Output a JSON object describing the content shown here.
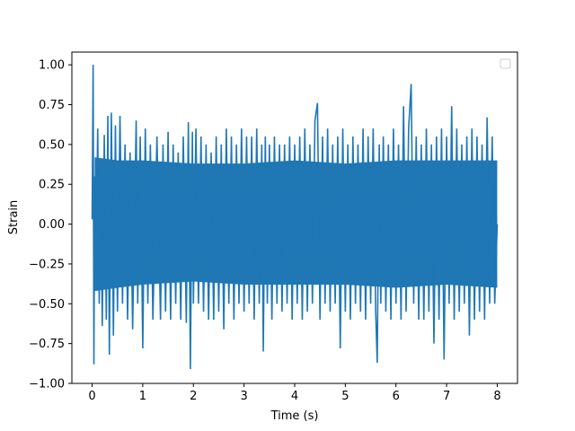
{
  "chart_data": {
    "type": "line",
    "title": "",
    "xlabel": "Time (s)",
    "ylabel": "Strain",
    "xlim": [
      -0.4,
      8.4
    ],
    "ylim": [
      -1.0,
      1.08
    ],
    "xticks": [
      0,
      1,
      2,
      3,
      4,
      5,
      6,
      7,
      8
    ],
    "xtick_labels": [
      "0",
      "1",
      "2",
      "3",
      "4",
      "5",
      "6",
      "7",
      "8"
    ],
    "yticks": [
      -1.0,
      -0.75,
      -0.5,
      -0.25,
      0.0,
      0.25,
      0.5,
      0.75,
      1.0
    ],
    "ytick_labels": [
      "−1.00",
      "−0.75",
      "−0.50",
      "−0.25",
      "0.00",
      "0.25",
      "0.50",
      "0.75",
      "1.00"
    ],
    "grid": false,
    "legend": {
      "placement": "top-right",
      "entries": []
    },
    "series": [
      {
        "color": "#1f77b4",
        "points": [
          [
            0.0,
            0.03
          ],
          [
            0.02,
            1.0
          ],
          [
            0.035,
            -0.88
          ],
          [
            0.05,
            0.3
          ],
          [
            0.08,
            -0.2
          ],
          [
            0.11,
            0.6
          ],
          [
            0.14,
            -0.5
          ],
          [
            0.17,
            0.4
          ],
          [
            0.2,
            -0.64
          ],
          [
            0.24,
            0.56
          ],
          [
            0.28,
            -0.6
          ],
          [
            0.31,
            0.68
          ],
          [
            0.34,
            -0.82
          ],
          [
            0.38,
            0.7
          ],
          [
            0.42,
            -0.7
          ],
          [
            0.46,
            0.62
          ],
          [
            0.5,
            -0.55
          ],
          [
            0.55,
            0.68
          ],
          [
            0.6,
            -0.5
          ],
          [
            0.65,
            0.5
          ],
          [
            0.7,
            -0.6
          ],
          [
            0.75,
            0.45
          ],
          [
            0.8,
            -0.66
          ],
          [
            0.87,
            0.65
          ],
          [
            0.9,
            -0.5
          ],
          [
            0.95,
            0.55
          ],
          [
            1.0,
            -0.78
          ],
          [
            1.05,
            0.6
          ],
          [
            1.1,
            -0.5
          ],
          [
            1.15,
            0.5
          ],
          [
            1.2,
            -0.6
          ],
          [
            1.28,
            0.55
          ],
          [
            1.35,
            -0.6
          ],
          [
            1.4,
            0.5
          ],
          [
            1.45,
            -0.55
          ],
          [
            1.5,
            0.58
          ],
          [
            1.55,
            -0.6
          ],
          [
            1.6,
            0.5
          ],
          [
            1.65,
            -0.5
          ],
          [
            1.7,
            0.45
          ],
          [
            1.75,
            -0.6
          ],
          [
            1.8,
            0.55
          ],
          [
            1.86,
            -0.62
          ],
          [
            1.9,
            0.64
          ],
          [
            1.94,
            -0.91
          ],
          [
            1.98,
            0.58
          ],
          [
            2.0,
            -0.5
          ],
          [
            2.05,
            0.6
          ],
          [
            2.1,
            -0.5
          ],
          [
            2.15,
            0.55
          ],
          [
            2.2,
            -0.55
          ],
          [
            2.25,
            0.5
          ],
          [
            2.3,
            -0.6
          ],
          [
            2.35,
            0.45
          ],
          [
            2.4,
            -0.6
          ],
          [
            2.45,
            0.55
          ],
          [
            2.5,
            -0.55
          ],
          [
            2.55,
            0.5
          ],
          [
            2.6,
            -0.66
          ],
          [
            2.65,
            0.6
          ],
          [
            2.7,
            -0.5
          ],
          [
            2.75,
            0.55
          ],
          [
            2.8,
            -0.6
          ],
          [
            2.85,
            0.5
          ],
          [
            2.9,
            -0.5
          ],
          [
            2.95,
            0.6
          ],
          [
            3.0,
            -0.55
          ],
          [
            3.05,
            0.55
          ],
          [
            3.1,
            -0.5
          ],
          [
            3.15,
            0.55
          ],
          [
            3.2,
            -0.6
          ],
          [
            3.25,
            0.6
          ],
          [
            3.3,
            -0.5
          ],
          [
            3.35,
            0.5
          ],
          [
            3.38,
            -0.8
          ],
          [
            3.42,
            0.55
          ],
          [
            3.46,
            -0.5
          ],
          [
            3.5,
            0.5
          ],
          [
            3.55,
            -0.6
          ],
          [
            3.6,
            0.55
          ],
          [
            3.65,
            -0.5
          ],
          [
            3.7,
            0.5
          ],
          [
            3.75,
            -0.55
          ],
          [
            3.8,
            0.5
          ],
          [
            3.85,
            -0.5
          ],
          [
            3.9,
            0.55
          ],
          [
            3.95,
            -0.6
          ],
          [
            4.0,
            0.5
          ],
          [
            4.05,
            -0.5
          ],
          [
            4.1,
            0.55
          ],
          [
            4.15,
            -0.6
          ],
          [
            4.2,
            0.6
          ],
          [
            4.25,
            -0.55
          ],
          [
            4.3,
            0.5
          ],
          [
            4.35,
            -0.5
          ],
          [
            4.4,
            0.65
          ],
          [
            4.45,
            0.76
          ],
          [
            4.5,
            -0.6
          ],
          [
            4.55,
            0.55
          ],
          [
            4.6,
            -0.5
          ],
          [
            4.65,
            0.6
          ],
          [
            4.7,
            -0.55
          ],
          [
            4.75,
            0.5
          ],
          [
            4.8,
            -0.5
          ],
          [
            4.85,
            0.55
          ],
          [
            4.9,
            -0.78
          ],
          [
            4.95,
            0.6
          ],
          [
            5.0,
            -0.55
          ],
          [
            5.05,
            0.5
          ],
          [
            5.1,
            -0.6
          ],
          [
            5.15,
            0.55
          ],
          [
            5.2,
            -0.5
          ],
          [
            5.25,
            0.5
          ],
          [
            5.3,
            -0.55
          ],
          [
            5.35,
            0.6
          ],
          [
            5.4,
            -0.6
          ],
          [
            5.45,
            0.55
          ],
          [
            5.5,
            -0.5
          ],
          [
            5.55,
            0.6
          ],
          [
            5.6,
            -0.55
          ],
          [
            5.63,
            -0.87
          ],
          [
            5.67,
            0.5
          ],
          [
            5.7,
            -0.5
          ],
          [
            5.75,
            0.55
          ],
          [
            5.8,
            -0.55
          ],
          [
            5.85,
            0.5
          ],
          [
            5.9,
            -0.6
          ],
          [
            5.95,
            0.6
          ],
          [
            6.0,
            -0.5
          ],
          [
            6.05,
            0.5
          ],
          [
            6.1,
            -0.6
          ],
          [
            6.15,
            0.74
          ],
          [
            6.2,
            -0.55
          ],
          [
            6.25,
            0.6
          ],
          [
            6.3,
            0.88
          ],
          [
            6.35,
            -0.5
          ],
          [
            6.4,
            0.55
          ],
          [
            6.45,
            -0.6
          ],
          [
            6.5,
            0.5
          ],
          [
            6.55,
            -0.6
          ],
          [
            6.6,
            0.6
          ],
          [
            6.65,
            -0.55
          ],
          [
            6.7,
            0.5
          ],
          [
            6.75,
            -0.75
          ],
          [
            6.8,
            0.55
          ],
          [
            6.85,
            -0.6
          ],
          [
            6.9,
            0.6
          ],
          [
            6.95,
            -0.85
          ],
          [
            7.0,
            0.55
          ],
          [
            7.05,
            -0.5
          ],
          [
            7.1,
            0.74
          ],
          [
            7.15,
            -0.6
          ],
          [
            7.2,
            0.6
          ],
          [
            7.25,
            -0.55
          ],
          [
            7.3,
            0.5
          ],
          [
            7.35,
            -0.5
          ],
          [
            7.4,
            0.55
          ],
          [
            7.45,
            -0.7
          ],
          [
            7.5,
            0.6
          ],
          [
            7.55,
            -0.6
          ],
          [
            7.6,
            0.55
          ],
          [
            7.65,
            -0.55
          ],
          [
            7.7,
            0.5
          ],
          [
            7.75,
            -0.6
          ],
          [
            7.8,
            0.67
          ],
          [
            7.85,
            -0.5
          ],
          [
            7.9,
            0.55
          ],
          [
            7.95,
            -0.5
          ],
          [
            8.0,
            0.0
          ]
        ],
        "envelope": [
          [
            0.05,
            -0.42,
            0.42
          ],
          [
            0.5,
            -0.4,
            0.4
          ],
          [
            1.0,
            -0.38,
            0.4
          ],
          [
            2.0,
            -0.36,
            0.38
          ],
          [
            3.0,
            -0.38,
            0.38
          ],
          [
            4.0,
            -0.38,
            0.4
          ],
          [
            5.0,
            -0.38,
            0.38
          ],
          [
            6.0,
            -0.4,
            0.4
          ],
          [
            7.0,
            -0.38,
            0.4
          ],
          [
            8.0,
            -0.4,
            0.4
          ]
        ]
      }
    ]
  }
}
